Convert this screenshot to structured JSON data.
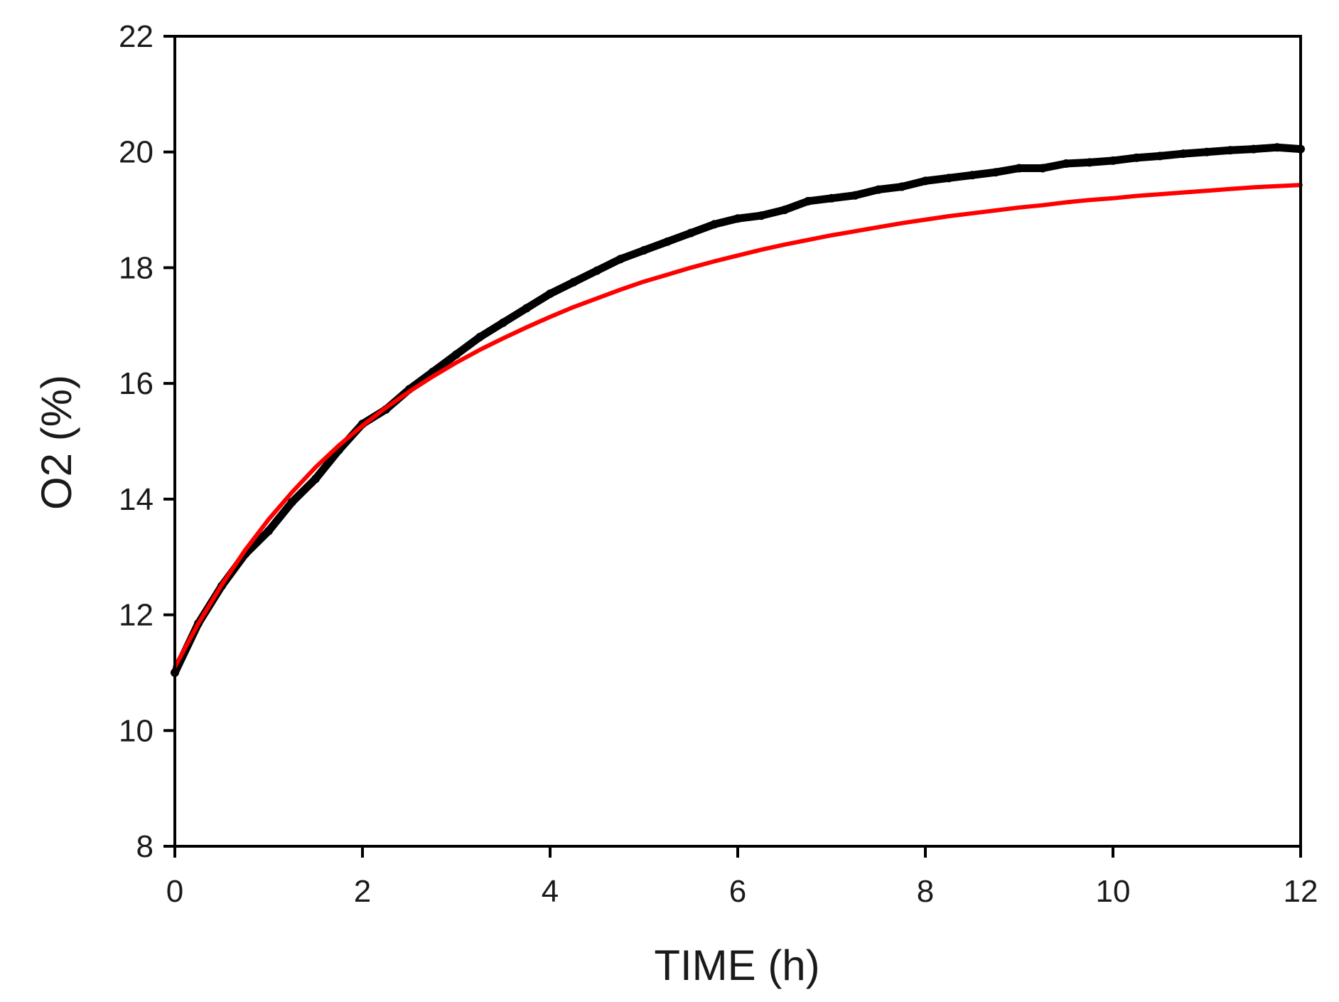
{
  "chart_data": {
    "type": "line",
    "title": "",
    "xlabel": "TIME (h)",
    "ylabel": "O2 (%)",
    "xlim": [
      0,
      12
    ],
    "ylim": [
      8,
      22
    ],
    "xticks": [
      0,
      2,
      4,
      6,
      8,
      10,
      12
    ],
    "yticks": [
      8,
      10,
      12,
      14,
      16,
      18,
      20,
      22
    ],
    "grid": false,
    "legend": "none",
    "series": [
      {
        "style": "noisy-dots",
        "color": "#000000",
        "x": [
          0.0,
          0.25,
          0.5,
          0.75,
          1.0,
          1.25,
          1.5,
          1.75,
          2.0,
          2.25,
          2.5,
          2.75,
          3.0,
          3.25,
          3.5,
          3.75,
          4.0,
          4.25,
          4.5,
          4.75,
          5.0,
          5.25,
          5.5,
          5.75,
          6.0,
          6.25,
          6.5,
          6.75,
          7.0,
          7.25,
          7.5,
          7.75,
          8.0,
          8.25,
          8.5,
          8.75,
          9.0,
          9.25,
          9.5,
          9.75,
          10.0,
          10.25,
          10.5,
          10.75,
          11.0,
          11.25,
          11.5,
          11.75,
          12.0
        ],
        "y": [
          11.0,
          11.85,
          12.5,
          13.05,
          13.45,
          13.95,
          14.35,
          14.85,
          15.3,
          15.55,
          15.9,
          16.2,
          16.5,
          16.8,
          17.05,
          17.3,
          17.55,
          17.75,
          17.95,
          18.15,
          18.3,
          18.45,
          18.6,
          18.75,
          18.85,
          18.9,
          19.0,
          19.15,
          19.2,
          19.25,
          19.35,
          19.4,
          19.5,
          19.55,
          19.6,
          19.65,
          19.72,
          19.72,
          19.8,
          19.82,
          19.85,
          19.9,
          19.93,
          19.97,
          20.0,
          20.03,
          20.05,
          20.08,
          20.05
        ]
      },
      {
        "style": "fit-line",
        "color": "#ff0000",
        "x": [
          0.0,
          0.25,
          0.5,
          0.75,
          1.0,
          1.25,
          1.5,
          1.75,
          2.0,
          2.25,
          2.5,
          2.75,
          3.0,
          3.25,
          3.5,
          3.75,
          4.0,
          4.25,
          4.5,
          4.75,
          5.0,
          5.25,
          5.5,
          5.75,
          6.0,
          6.25,
          6.5,
          6.75,
          7.0,
          7.25,
          7.5,
          7.75,
          8.0,
          8.25,
          8.5,
          8.75,
          9.0,
          9.25,
          9.5,
          9.75,
          10.0,
          10.25,
          10.5,
          10.75,
          11.0,
          11.25,
          11.5,
          11.75,
          12.0
        ],
        "y": [
          11.1,
          11.85,
          12.52,
          13.12,
          13.65,
          14.12,
          14.55,
          14.93,
          15.27,
          15.58,
          15.86,
          16.12,
          16.36,
          16.58,
          16.78,
          16.97,
          17.15,
          17.32,
          17.47,
          17.62,
          17.76,
          17.88,
          18.0,
          18.11,
          18.21,
          18.31,
          18.4,
          18.48,
          18.56,
          18.63,
          18.7,
          18.77,
          18.83,
          18.89,
          18.94,
          18.99,
          19.04,
          19.08,
          19.13,
          19.17,
          19.2,
          19.24,
          19.27,
          19.3,
          19.33,
          19.36,
          19.39,
          19.41,
          19.43
        ]
      }
    ]
  }
}
